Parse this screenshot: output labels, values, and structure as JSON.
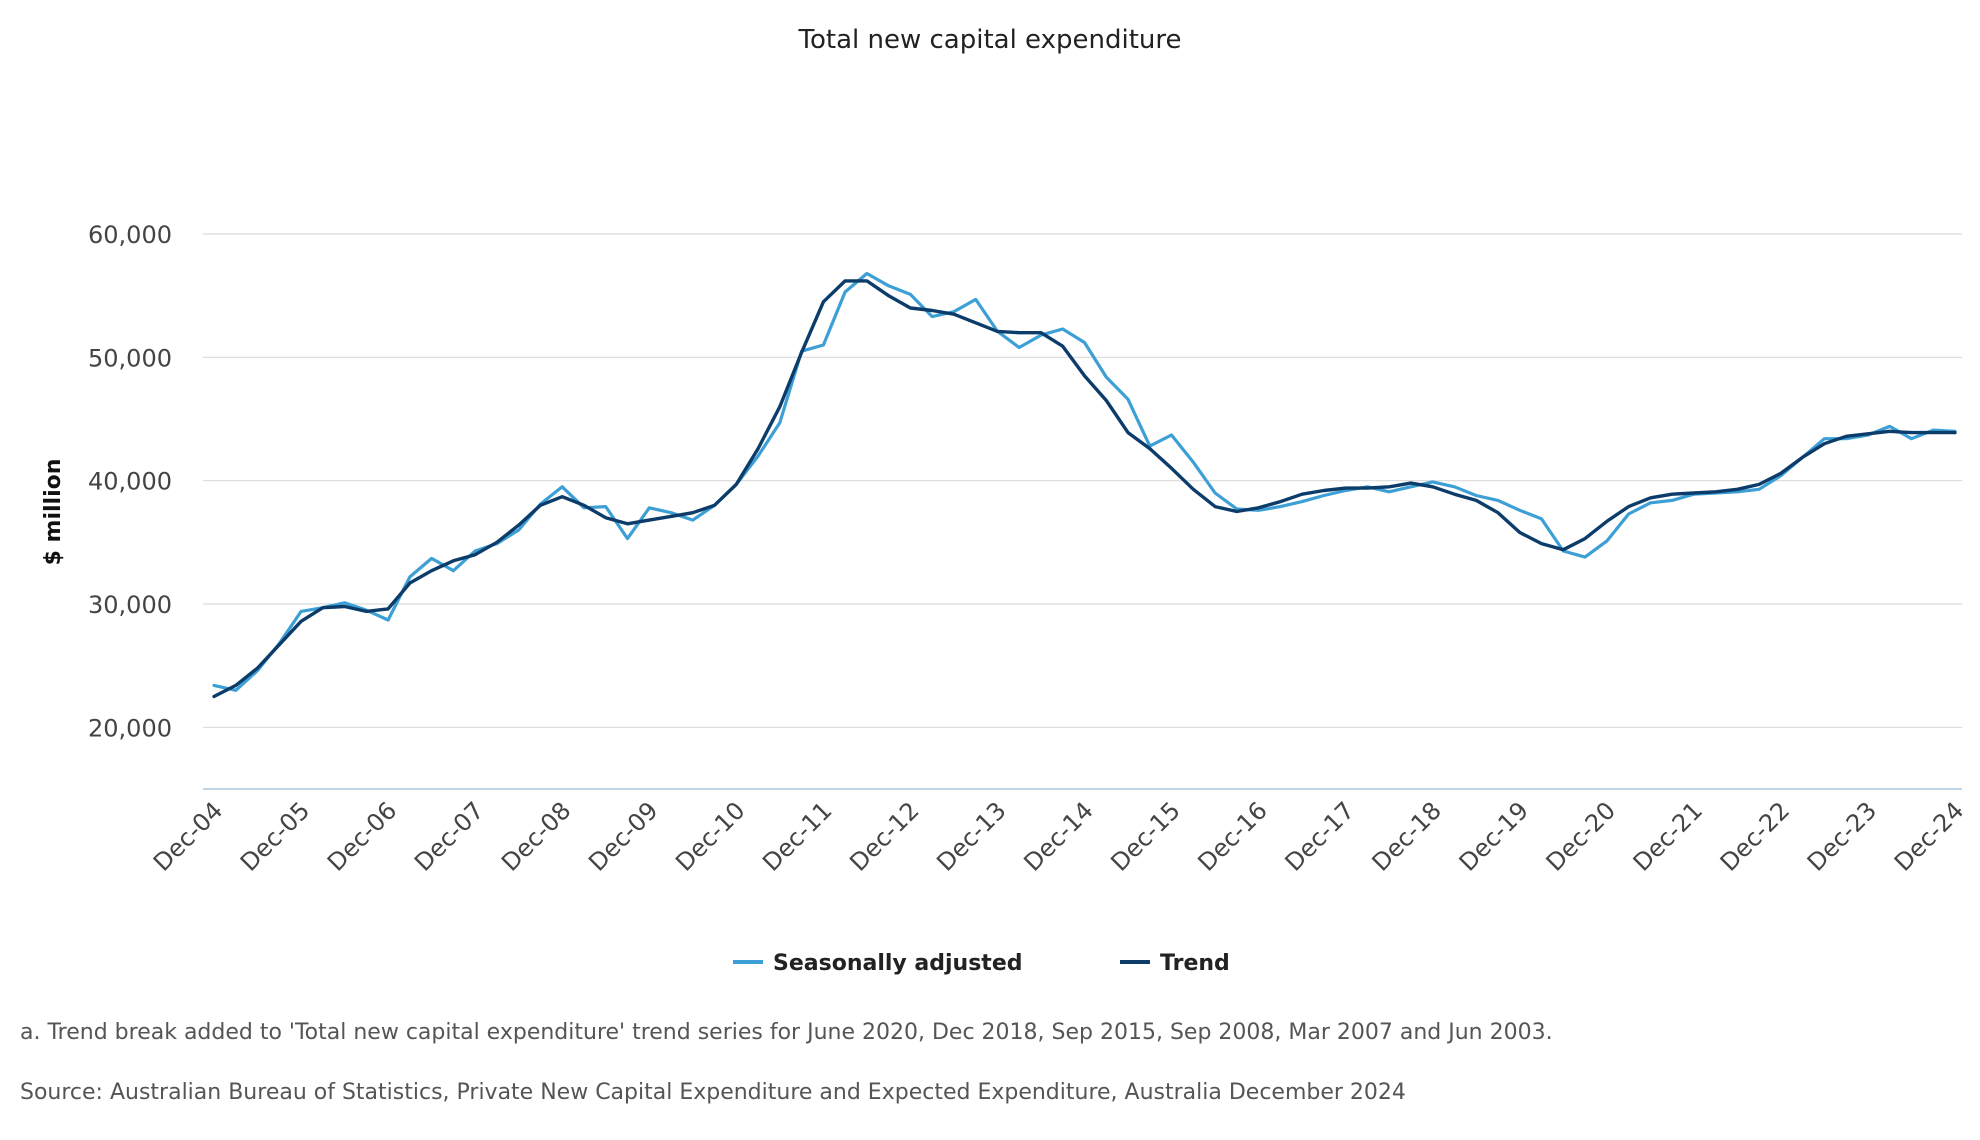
{
  "chart_data": {
    "type": "line",
    "title": "Total new capital expenditure",
    "ylabel": "$ million",
    "xlabel": "",
    "ylim": [
      15000,
      60000
    ],
    "yticks": [
      20000,
      30000,
      40000,
      50000,
      60000
    ],
    "ytick_labels": [
      "20,000",
      "30,000",
      "40,000",
      "50,000",
      "60,000"
    ],
    "grid": true,
    "legend_position": "bottom",
    "xtick_labels": [
      "Dec-04",
      "Dec-05",
      "Dec-06",
      "Dec-07",
      "Dec-08",
      "Dec-09",
      "Dec-10",
      "Dec-11",
      "Dec-12",
      "Dec-13",
      "Dec-14",
      "Dec-15",
      "Dec-16",
      "Dec-17",
      "Dec-18",
      "Dec-19",
      "Dec-20",
      "Dec-21",
      "Dec-22",
      "Dec-23",
      "Dec-24"
    ],
    "x_quarters_start": "Dec-04",
    "series": [
      {
        "name": "Seasonally adjusted",
        "color": "#3c9fd6",
        "values": [
          23400,
          23000,
          24600,
          26800,
          29400,
          29700,
          30100,
          29500,
          28700,
          32200,
          33700,
          32700,
          34300,
          34900,
          36000,
          38100,
          39500,
          37800,
          37900,
          35300,
          37800,
          37400,
          36800,
          38000,
          39700,
          42000,
          44700,
          50500,
          51000,
          55300,
          56800,
          55800,
          55100,
          53300,
          53700,
          54700,
          52100,
          50800,
          51800,
          52300,
          51200,
          48400,
          46600,
          42800,
          43700,
          41500,
          39000,
          37700,
          37600,
          37900,
          38300,
          38800,
          39200,
          39500,
          39100,
          39500,
          39900,
          39500,
          38800,
          38400,
          37600,
          36900,
          34300,
          33800,
          35100,
          37300,
          38200,
          38400,
          38900,
          39000,
          39100,
          39300,
          40400,
          41900,
          43400,
          43400,
          43700,
          44400,
          43400,
          44100,
          44000
        ]
      },
      {
        "name": "Trend",
        "color": "#0c3c6a",
        "values": [
          22500,
          23400,
          24800,
          26700,
          28600,
          29700,
          29800,
          29400,
          29600,
          31700,
          32700,
          33500,
          34000,
          35000,
          36400,
          38000,
          38700,
          38000,
          37000,
          36500,
          36800,
          37100,
          37400,
          38000,
          39700,
          42600,
          46000,
          50400,
          54500,
          56200,
          56200,
          55000,
          54000,
          53800,
          53500,
          52800,
          52100,
          52000,
          52000,
          50900,
          48500,
          46500,
          43900,
          42600,
          41000,
          39300,
          37900,
          37500,
          37800,
          38300,
          38900,
          39200,
          39400,
          39400,
          39500,
          39800,
          39500,
          38900,
          38400,
          37400,
          35800,
          34900,
          34400,
          35300,
          36700,
          37900,
          38600,
          38900,
          39000,
          39100,
          39300,
          39700,
          40600,
          41900,
          43000,
          43600,
          43800,
          44000,
          43900,
          43900,
          43900
        ]
      }
    ]
  },
  "notes": {
    "footnote": "a. Trend break added to 'Total new capital expenditure' trend series for June 2020, Dec 2018, Sep 2015, Sep 2008, Mar 2007 and Jun 2003.",
    "source": "Source: Australian Bureau of Statistics, Private New Capital Expenditure and Expected Expenditure, Australia December 2024"
  }
}
